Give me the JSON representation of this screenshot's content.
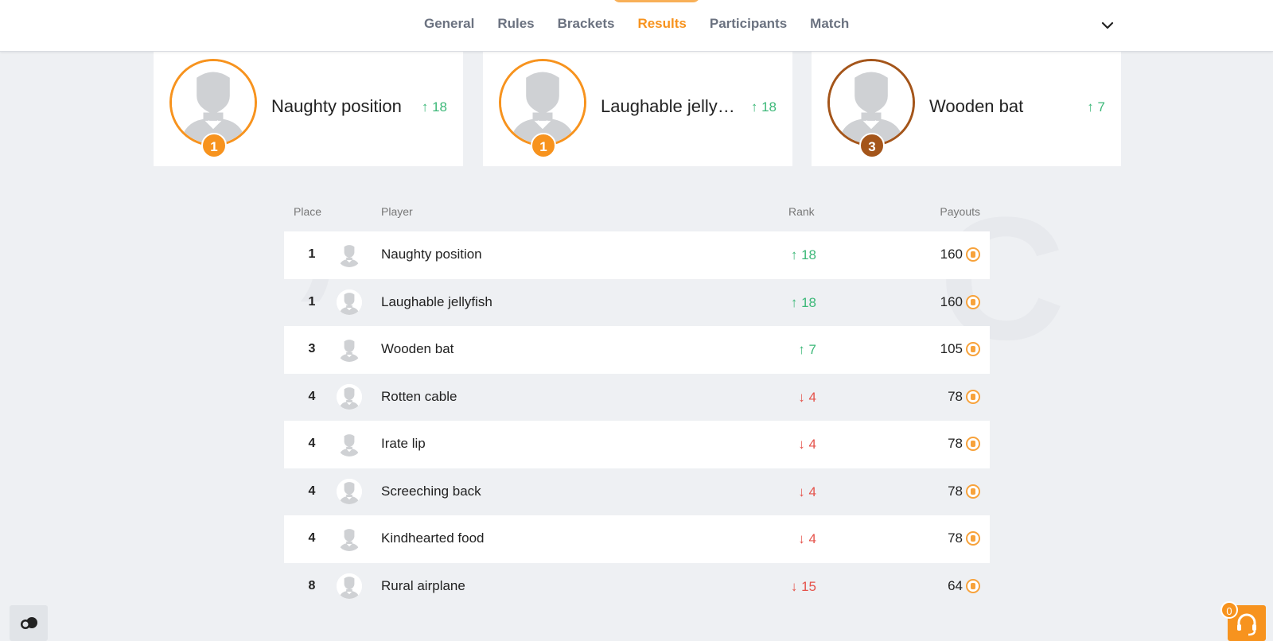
{
  "nav": {
    "tabs": [
      {
        "label": "General",
        "active": false
      },
      {
        "label": "Rules",
        "active": false
      },
      {
        "label": "Brackets",
        "active": false
      },
      {
        "label": "Results",
        "active": true
      },
      {
        "label": "Participants",
        "active": false
      },
      {
        "label": "Match",
        "active": false
      }
    ],
    "more_icon": "chevron-down-icon"
  },
  "podium": [
    {
      "place": "1",
      "name": "Naughty position",
      "rank_change": "18",
      "direction": "up",
      "medal": "gold"
    },
    {
      "place": "1",
      "name": "Laughable jellyfish",
      "rank_change": "18",
      "direction": "up",
      "medal": "gold"
    },
    {
      "place": "3",
      "name": "Wooden bat",
      "rank_change": "7",
      "direction": "up",
      "medal": "bronze"
    }
  ],
  "table": {
    "headers": {
      "place": "Place",
      "player": "Player",
      "rank": "Rank",
      "payouts": "Payouts"
    },
    "rows": [
      {
        "place": "1",
        "name": "Naughty position",
        "rank": "18",
        "direction": "up",
        "payout": "160"
      },
      {
        "place": "1",
        "name": "Laughable jellyfish",
        "rank": "18",
        "direction": "up",
        "payout": "160"
      },
      {
        "place": "3",
        "name": "Wooden bat",
        "rank": "7",
        "direction": "up",
        "payout": "105"
      },
      {
        "place": "4",
        "name": "Rotten cable",
        "rank": "4",
        "direction": "down",
        "payout": "78"
      },
      {
        "place": "4",
        "name": "Irate lip",
        "rank": "4",
        "direction": "down",
        "payout": "78"
      },
      {
        "place": "4",
        "name": "Screeching back",
        "rank": "4",
        "direction": "down",
        "payout": "78"
      },
      {
        "place": "4",
        "name": "Kindhearted food",
        "rank": "4",
        "direction": "down",
        "payout": "78"
      },
      {
        "place": "8",
        "name": "Rural airplane",
        "rank": "15",
        "direction": "down",
        "payout": "64"
      }
    ]
  },
  "support": {
    "count": "0"
  },
  "colors": {
    "accent": "#f7931e",
    "bronze": "#a4551a",
    "up": "#3cb878",
    "down": "#e5534b"
  }
}
